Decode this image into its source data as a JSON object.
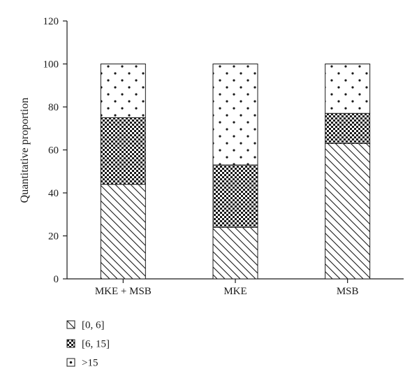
{
  "chart_data": {
    "type": "bar",
    "stacked": true,
    "title": "",
    "xlabel": "",
    "ylabel": "Quantitative proportion",
    "ylim": [
      0,
      120
    ],
    "yticks": [
      0,
      20,
      40,
      60,
      80,
      100,
      120
    ],
    "categories": [
      "MKE + MSB",
      "MKE",
      "MSB"
    ],
    "series": [
      {
        "name": "[0, 6]",
        "pattern": "diagonal-hatch",
        "values": [
          44,
          24,
          63
        ]
      },
      {
        "name": "[6, 15]",
        "pattern": "checkerboard",
        "values": [
          31,
          29,
          14
        ]
      },
      {
        "name": ">15",
        "pattern": "dots",
        "values": [
          25,
          47,
          23
        ]
      }
    ],
    "grid": false,
    "legend_position": "bottom-left"
  },
  "colors": {
    "ink": "#1a1a1a",
    "background": "#ffffff"
  }
}
